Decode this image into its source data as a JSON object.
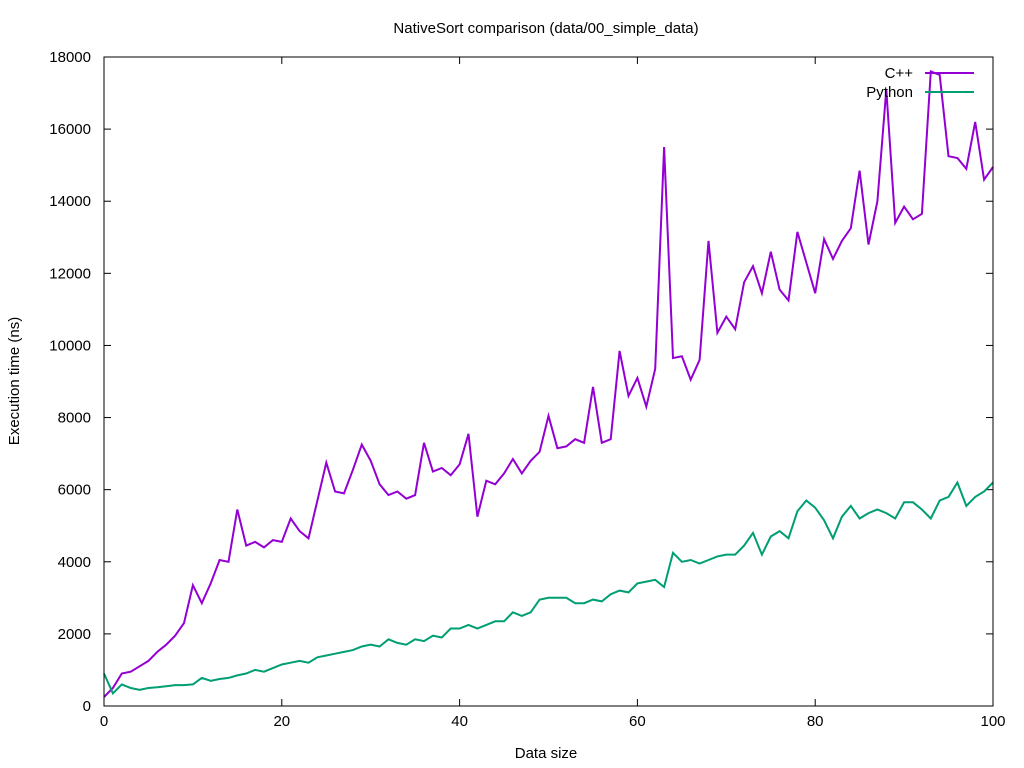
{
  "chart_data": {
    "type": "line",
    "title": "NativeSort comparison (data/00_simple_data)",
    "xlabel": "Data size",
    "ylabel": "Execution time (ns)",
    "xlim": [
      0,
      100
    ],
    "ylim": [
      0,
      18000
    ],
    "x_ticks": [
      0,
      20,
      40,
      60,
      80,
      100
    ],
    "y_ticks": [
      0,
      2000,
      4000,
      6000,
      8000,
      10000,
      12000,
      14000,
      16000,
      18000
    ],
    "grid": false,
    "legend_position": "top-right",
    "x": [
      0,
      1,
      2,
      3,
      4,
      5,
      6,
      7,
      8,
      9,
      10,
      11,
      12,
      13,
      14,
      15,
      16,
      17,
      18,
      19,
      20,
      21,
      22,
      23,
      24,
      25,
      26,
      27,
      28,
      29,
      30,
      31,
      32,
      33,
      34,
      35,
      36,
      37,
      38,
      39,
      40,
      41,
      42,
      43,
      44,
      45,
      46,
      47,
      48,
      49,
      50,
      51,
      52,
      53,
      54,
      55,
      56,
      57,
      58,
      59,
      60,
      61,
      62,
      63,
      64,
      65,
      66,
      67,
      68,
      69,
      70,
      71,
      72,
      73,
      74,
      75,
      76,
      77,
      78,
      79,
      80,
      81,
      82,
      83,
      84,
      85,
      86,
      87,
      88,
      89,
      90,
      91,
      92,
      93,
      94,
      95,
      96,
      97,
      98,
      99,
      100
    ],
    "series": [
      {
        "name": "C++",
        "color": "#9400d3",
        "values": [
          250,
          500,
          900,
          950,
          1100,
          1250,
          1500,
          1700,
          1950,
          2300,
          3350,
          2850,
          3400,
          4050,
          4000,
          5450,
          4450,
          4550,
          4400,
          4600,
          4550,
          5200,
          4850,
          4650,
          5700,
          6750,
          5950,
          5900,
          6550,
          7250,
          6800,
          6150,
          5850,
          5950,
          5750,
          5850,
          7300,
          6500,
          6600,
          6400,
          6700,
          7550,
          5250,
          6250,
          6150,
          6450,
          6850,
          6450,
          6800,
          7050,
          8050,
          7150,
          7200,
          7400,
          7300,
          8850,
          7300,
          7400,
          9850,
          8600,
          9100,
          8300,
          9350,
          15500,
          9650,
          9700,
          9050,
          9600,
          12900,
          10350,
          10800,
          10450,
          11750,
          12200,
          11450,
          12600,
          11550,
          11250,
          13150,
          12300,
          11450,
          12950,
          12400,
          12900,
          13250,
          14850,
          12800,
          14000,
          17100,
          13400,
          13850,
          13500,
          13650,
          17600,
          17500,
          15250,
          15200,
          14900,
          16200,
          14600,
          14950
        ]
      },
      {
        "name": "Python",
        "color": "#009e73",
        "values": [
          900,
          350,
          600,
          500,
          450,
          500,
          520,
          550,
          580,
          580,
          600,
          780,
          700,
          750,
          780,
          850,
          900,
          1000,
          950,
          1050,
          1150,
          1200,
          1250,
          1200,
          1350,
          1400,
          1450,
          1500,
          1550,
          1650,
          1700,
          1650,
          1850,
          1750,
          1700,
          1850,
          1800,
          1950,
          1900,
          2150,
          2150,
          2250,
          2150,
          2250,
          2350,
          2350,
          2600,
          2500,
          2600,
          2950,
          3000,
          3000,
          3000,
          2850,
          2850,
          2950,
          2900,
          3100,
          3200,
          3150,
          3400,
          3450,
          3500,
          3300,
          4250,
          4000,
          4050,
          3950,
          4050,
          4150,
          4200,
          4200,
          4450,
          4800,
          4200,
          4700,
          4850,
          4650,
          5400,
          5700,
          5500,
          5150,
          4650,
          5250,
          5550,
          5200,
          5350,
          5450,
          5350,
          5200,
          5650,
          5650,
          5450,
          5200,
          5700,
          5800,
          6200,
          5550,
          5800,
          5950,
          6200
        ]
      }
    ]
  }
}
